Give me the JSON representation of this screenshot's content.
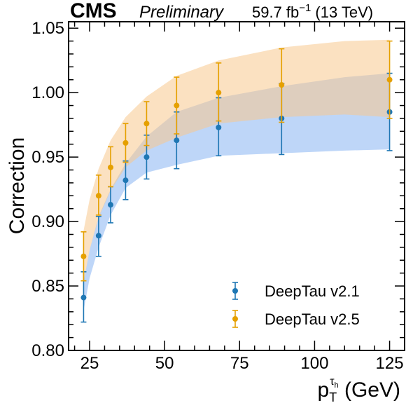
{
  "header": {
    "experiment": "CMS",
    "status": "Preliminary",
    "lumi_value": "59.7 fb",
    "lumi_exp": "−1",
    "energy": "(13 TeV)"
  },
  "axes": {
    "ylabel": "Correction",
    "xlabel_p": "p",
    "xlabel_sub": "T",
    "xlabel_sup": "τ",
    "xlabel_supsub": "h",
    "xlabel_unit": " (GeV)"
  },
  "chart_data": {
    "type": "scatter",
    "xlim": [
      18,
      130
    ],
    "ylim": [
      0.8,
      1.055
    ],
    "x_ticks": [
      25,
      50,
      75,
      100,
      125
    ],
    "x_tick_labels": [
      "25",
      "50",
      "75",
      "100",
      "125"
    ],
    "y_ticks": [
      0.8,
      0.85,
      0.9,
      0.95,
      1.0,
      1.05
    ],
    "y_tick_labels": [
      "0.80",
      "0.85",
      "0.90",
      "0.95",
      "1.00",
      "1.05"
    ],
    "grid": false,
    "legend_position": "bottom-right",
    "series": [
      {
        "name": "DeepTau v2.1",
        "color": "#1f77b4",
        "band_color": "#a8c8f5",
        "x": [
          23,
          28,
          32,
          37,
          44,
          54,
          68,
          89,
          125
        ],
        "y": [
          0.841,
          0.889,
          0.913,
          0.932,
          0.95,
          0.963,
          0.973,
          0.98,
          0.985
        ],
        "err_lo": [
          0.019,
          0.016,
          0.014,
          0.015,
          0.017,
          0.022,
          0.022,
          0.028,
          0.03
        ],
        "err_hi": [
          0.02,
          0.015,
          0.014,
          0.015,
          0.017,
          0.022,
          0.023,
          0.027,
          0.03
        ],
        "band_x": [
          23,
          25,
          28,
          32,
          37,
          44,
          54,
          68,
          89,
          110,
          125
        ],
        "band_lo": [
          0.831,
          0.856,
          0.88,
          0.905,
          0.926,
          0.938,
          0.944,
          0.951,
          0.953,
          0.955,
          0.956
        ],
        "band_hi": [
          0.853,
          0.878,
          0.904,
          0.925,
          0.945,
          0.966,
          0.985,
          0.996,
          1.005,
          1.012,
          1.015
        ]
      },
      {
        "name": "DeepTau v2.5",
        "color": "#e5a000",
        "band_color": "#f7c98e",
        "x": [
          23,
          28,
          32,
          37,
          44,
          54,
          68,
          89,
          125
        ],
        "y": [
          0.873,
          0.92,
          0.942,
          0.961,
          0.976,
          0.99,
          1.0,
          1.006,
          1.01
        ],
        "err_lo": [
          0.019,
          0.015,
          0.015,
          0.015,
          0.017,
          0.022,
          0.022,
          0.029,
          0.03
        ],
        "err_hi": [
          0.019,
          0.016,
          0.016,
          0.015,
          0.017,
          0.022,
          0.023,
          0.028,
          0.03
        ],
        "band_x": [
          23,
          25,
          28,
          32,
          37,
          44,
          54,
          68,
          89,
          110,
          125
        ],
        "band_lo": [
          0.852,
          0.878,
          0.903,
          0.924,
          0.942,
          0.955,
          0.965,
          0.976,
          0.981,
          0.983,
          0.981
        ],
        "band_hi": [
          0.893,
          0.917,
          0.941,
          0.963,
          0.981,
          0.997,
          1.013,
          1.025,
          1.035,
          1.04,
          1.041
        ]
      }
    ]
  }
}
